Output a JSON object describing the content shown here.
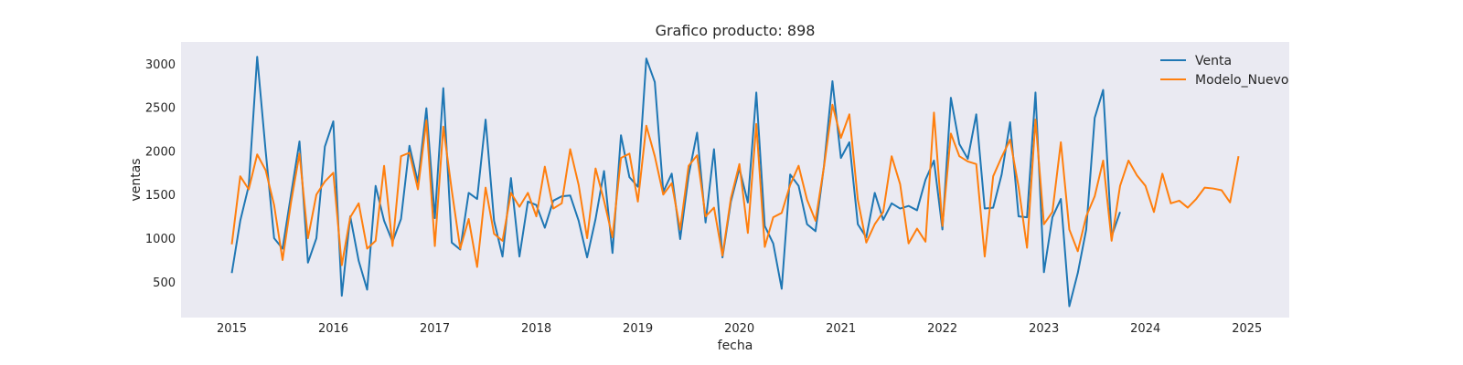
{
  "chart_data": {
    "type": "line",
    "title": "Grafico producto: 898",
    "xlabel": "fecha",
    "ylabel": "ventas",
    "xlim": [
      "2014-07",
      "2025-06"
    ],
    "ylim": [
      90,
      3250
    ],
    "x_ticks": [
      "2015",
      "2016",
      "2017",
      "2018",
      "2019",
      "2020",
      "2021",
      "2022",
      "2023",
      "2024",
      "2025"
    ],
    "y_ticks": [
      500,
      1000,
      1500,
      2000,
      2500,
      3000
    ],
    "grid": false,
    "legend_position": "top-right",
    "background": "#eaeaf2",
    "x_start": "2015-01",
    "x_step": "month",
    "series": [
      {
        "name": "Venta",
        "color": "#1f77b4",
        "values": [
          600,
          1200,
          1600,
          3080,
          2000,
          1000,
          880,
          1500,
          2110,
          720,
          1000,
          2050,
          2340,
          340,
          1250,
          740,
          410,
          1600,
          1200,
          960,
          1220,
          2060,
          1640,
          2490,
          1230,
          2720,
          950,
          870,
          1520,
          1450,
          2360,
          1200,
          790,
          1690,
          790,
          1420,
          1380,
          1120,
          1430,
          1480,
          1490,
          1200,
          780,
          1220,
          1770,
          830,
          2180,
          1700,
          1590,
          3060,
          2790,
          1530,
          1740,
          990,
          1720,
          2210,
          1180,
          2020,
          780,
          1420,
          1800,
          1410,
          2670,
          1140,
          940,
          420,
          1730,
          1600,
          1160,
          1080,
          1830,
          2800,
          1920,
          2100,
          1160,
          1010,
          1520,
          1210,
          1400,
          1340,
          1370,
          1320,
          1670,
          1890,
          1100,
          2610,
          2080,
          1910,
          2420,
          1340,
          1350,
          1730,
          2330,
          1250,
          1240,
          2670,
          610,
          1240,
          1450,
          220,
          600,
          1100,
          2380,
          2700,
          1020,
          1300
        ]
      },
      {
        "name": "Modelo_Nuevo",
        "color": "#ff7f0e",
        "values": [
          930,
          1710,
          1560,
          1960,
          1780,
          1380,
          750,
          1410,
          1970,
          1000,
          1500,
          1650,
          1750,
          690,
          1240,
          1400,
          880,
          970,
          1830,
          910,
          1940,
          1980,
          1560,
          2350,
          910,
          2280,
          1550,
          880,
          1220,
          670,
          1580,
          1050,
          970,
          1520,
          1360,
          1520,
          1250,
          1820,
          1340,
          1400,
          2020,
          1610,
          1000,
          1800,
          1430,
          1010,
          1920,
          1970,
          1420,
          2290,
          1940,
          1500,
          1630,
          1100,
          1830,
          1950,
          1250,
          1350,
          800,
          1460,
          1850,
          1060,
          2310,
          900,
          1240,
          1290,
          1610,
          1830,
          1440,
          1200,
          1820,
          2530,
          2150,
          2420,
          1440,
          950,
          1160,
          1300,
          1940,
          1620,
          940,
          1110,
          960,
          2440,
          1140,
          2200,
          1940,
          1880,
          1850,
          790,
          1710,
          1930,
          2130,
          1590,
          890,
          2360,
          1160,
          1300,
          2100,
          1100,
          850,
          1250,
          1480,
          1890,
          970,
          1600,
          1890,
          1720,
          1600,
          1300,
          1740,
          1400,
          1430,
          1350,
          1450,
          1580,
          1570,
          1550,
          1410,
          1940
        ]
      }
    ]
  }
}
